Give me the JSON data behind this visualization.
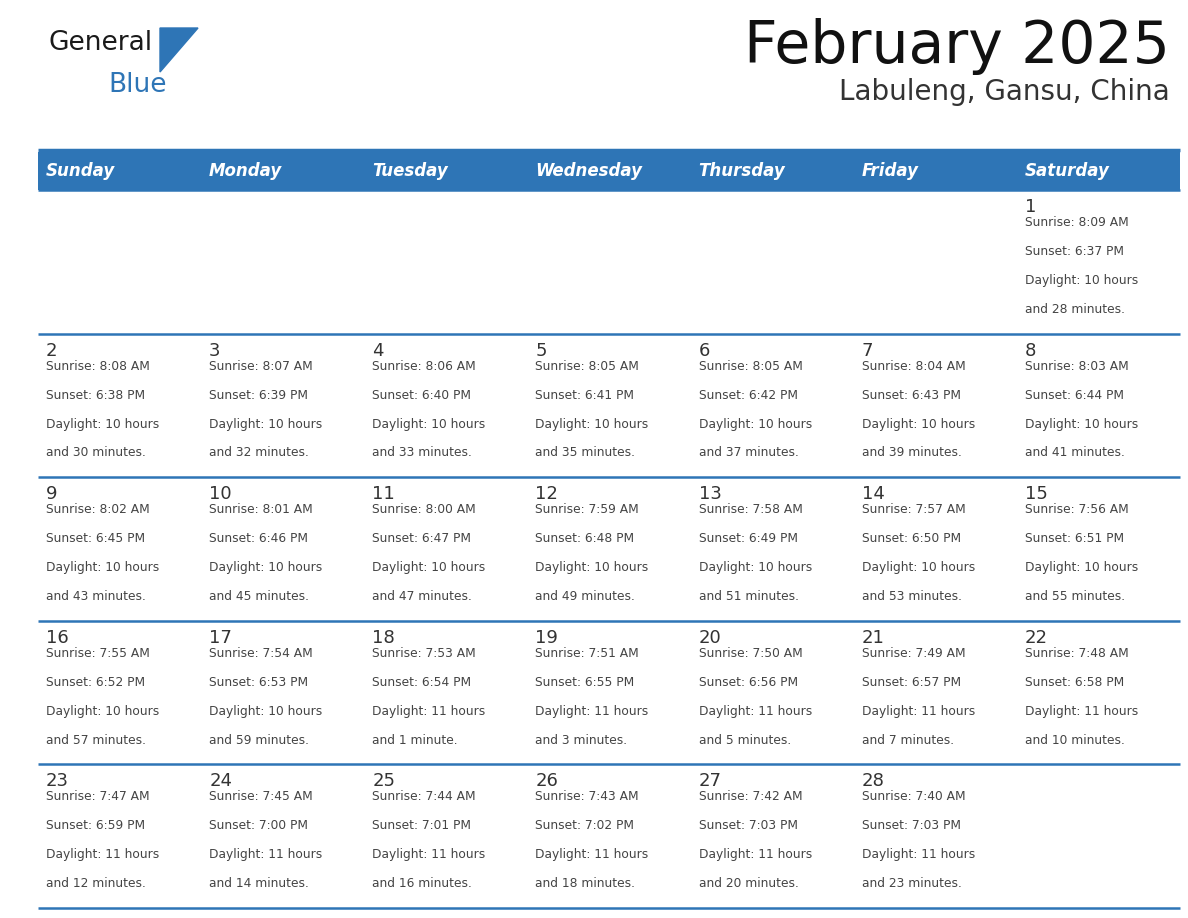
{
  "title": "February 2025",
  "subtitle": "Labuleng, Gansu, China",
  "header_bg_color": "#2E75B6",
  "header_text_color": "#FFFFFF",
  "days_of_week": [
    "Sunday",
    "Monday",
    "Tuesday",
    "Wednesday",
    "Thursday",
    "Friday",
    "Saturday"
  ],
  "cell_bg_color": "#FFFFFF",
  "grid_line_color": "#2E75B6",
  "day_number_color": "#333333",
  "info_text_color": "#444444",
  "title_color": "#111111",
  "subtitle_color": "#333333",
  "logo_general_color": "#1a1a1a",
  "logo_blue_color": "#2E75B6",
  "calendar_data": [
    [
      null,
      null,
      null,
      null,
      null,
      null,
      {
        "day": 1,
        "sunrise": "8:09 AM",
        "sunset": "6:37 PM",
        "daylight": "10 hours\nand 28 minutes."
      }
    ],
    [
      {
        "day": 2,
        "sunrise": "8:08 AM",
        "sunset": "6:38 PM",
        "daylight": "10 hours\nand 30 minutes."
      },
      {
        "day": 3,
        "sunrise": "8:07 AM",
        "sunset": "6:39 PM",
        "daylight": "10 hours\nand 32 minutes."
      },
      {
        "day": 4,
        "sunrise": "8:06 AM",
        "sunset": "6:40 PM",
        "daylight": "10 hours\nand 33 minutes."
      },
      {
        "day": 5,
        "sunrise": "8:05 AM",
        "sunset": "6:41 PM",
        "daylight": "10 hours\nand 35 minutes."
      },
      {
        "day": 6,
        "sunrise": "8:05 AM",
        "sunset": "6:42 PM",
        "daylight": "10 hours\nand 37 minutes."
      },
      {
        "day": 7,
        "sunrise": "8:04 AM",
        "sunset": "6:43 PM",
        "daylight": "10 hours\nand 39 minutes."
      },
      {
        "day": 8,
        "sunrise": "8:03 AM",
        "sunset": "6:44 PM",
        "daylight": "10 hours\nand 41 minutes."
      }
    ],
    [
      {
        "day": 9,
        "sunrise": "8:02 AM",
        "sunset": "6:45 PM",
        "daylight": "10 hours\nand 43 minutes."
      },
      {
        "day": 10,
        "sunrise": "8:01 AM",
        "sunset": "6:46 PM",
        "daylight": "10 hours\nand 45 minutes."
      },
      {
        "day": 11,
        "sunrise": "8:00 AM",
        "sunset": "6:47 PM",
        "daylight": "10 hours\nand 47 minutes."
      },
      {
        "day": 12,
        "sunrise": "7:59 AM",
        "sunset": "6:48 PM",
        "daylight": "10 hours\nand 49 minutes."
      },
      {
        "day": 13,
        "sunrise": "7:58 AM",
        "sunset": "6:49 PM",
        "daylight": "10 hours\nand 51 minutes."
      },
      {
        "day": 14,
        "sunrise": "7:57 AM",
        "sunset": "6:50 PM",
        "daylight": "10 hours\nand 53 minutes."
      },
      {
        "day": 15,
        "sunrise": "7:56 AM",
        "sunset": "6:51 PM",
        "daylight": "10 hours\nand 55 minutes."
      }
    ],
    [
      {
        "day": 16,
        "sunrise": "7:55 AM",
        "sunset": "6:52 PM",
        "daylight": "10 hours\nand 57 minutes."
      },
      {
        "day": 17,
        "sunrise": "7:54 AM",
        "sunset": "6:53 PM",
        "daylight": "10 hours\nand 59 minutes."
      },
      {
        "day": 18,
        "sunrise": "7:53 AM",
        "sunset": "6:54 PM",
        "daylight": "11 hours\nand 1 minute."
      },
      {
        "day": 19,
        "sunrise": "7:51 AM",
        "sunset": "6:55 PM",
        "daylight": "11 hours\nand 3 minutes."
      },
      {
        "day": 20,
        "sunrise": "7:50 AM",
        "sunset": "6:56 PM",
        "daylight": "11 hours\nand 5 minutes."
      },
      {
        "day": 21,
        "sunrise": "7:49 AM",
        "sunset": "6:57 PM",
        "daylight": "11 hours\nand 7 minutes."
      },
      {
        "day": 22,
        "sunrise": "7:48 AM",
        "sunset": "6:58 PM",
        "daylight": "11 hours\nand 10 minutes."
      }
    ],
    [
      {
        "day": 23,
        "sunrise": "7:47 AM",
        "sunset": "6:59 PM",
        "daylight": "11 hours\nand 12 minutes."
      },
      {
        "day": 24,
        "sunrise": "7:45 AM",
        "sunset": "7:00 PM",
        "daylight": "11 hours\nand 14 minutes."
      },
      {
        "day": 25,
        "sunrise": "7:44 AM",
        "sunset": "7:01 PM",
        "daylight": "11 hours\nand 16 minutes."
      },
      {
        "day": 26,
        "sunrise": "7:43 AM",
        "sunset": "7:02 PM",
        "daylight": "11 hours\nand 18 minutes."
      },
      {
        "day": 27,
        "sunrise": "7:42 AM",
        "sunset": "7:03 PM",
        "daylight": "11 hours\nand 20 minutes."
      },
      {
        "day": 28,
        "sunrise": "7:40 AM",
        "sunset": "7:03 PM",
        "daylight": "11 hours\nand 23 minutes."
      },
      null
    ]
  ]
}
